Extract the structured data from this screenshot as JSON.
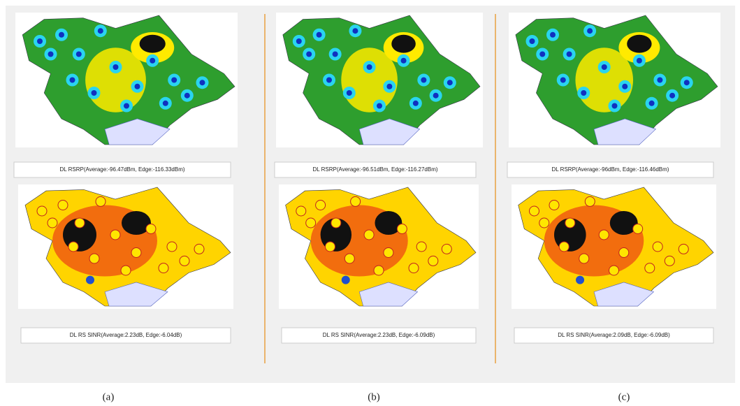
{
  "panels": [
    {
      "label": "(a)",
      "rsrp_caption": "DL RSRP(Average:-96.47dBm, Edge:-116.33dBm)",
      "sinr_caption": "DL RS SINR(Average:2.23dB, Edge:-6.04dB)"
    },
    {
      "label": "(b)",
      "rsrp_caption": "DL RSRP(Average:-96.51dBm, Edge:-116.27dBm)",
      "sinr_caption": "DL RS SINR(Average:2.23dB, Edge:-6.09dB)"
    },
    {
      "label": "(c)",
      "rsrp_caption": "DL RSRP(Average:-96dBm, Edge:-116.46dBm)",
      "sinr_caption": "DL RS SINR(Average:2.09dB, Edge:-6.09dB)"
    }
  ]
}
